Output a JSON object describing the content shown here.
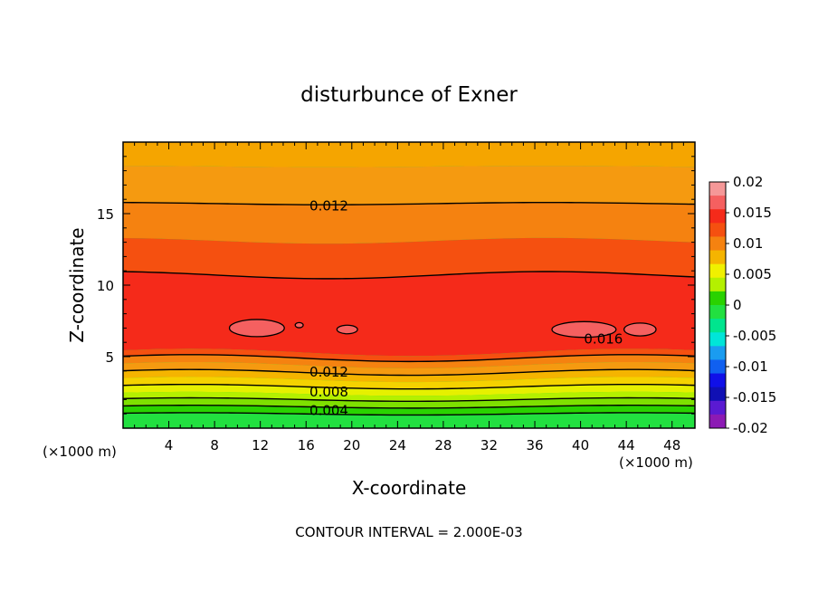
{
  "chart_data": {
    "type": "contour",
    "title": "disturbunce of Exner",
    "xlabel": "X-coordinate",
    "ylabel": "Z-coordinate",
    "x_unit_left": "(×1000 m)",
    "x_unit_right": "(×1000 m)",
    "footer": "CONTOUR INTERVAL = 2.000E-03",
    "xlim": [
      0,
      50
    ],
    "ylim": [
      0,
      20
    ],
    "x_ticks": [
      4,
      8,
      12,
      16,
      20,
      24,
      28,
      32,
      36,
      40,
      44,
      48
    ],
    "y_ticks": [
      5,
      10,
      15
    ],
    "contour_interval": 0.002,
    "contour_levels": [
      0.002,
      0.004,
      0.006,
      0.008,
      0.01,
      0.012,
      0.014,
      0.016
    ],
    "contour_labels": [
      {
        "text": "0.012",
        "x": 18,
        "z": 15.6
      },
      {
        "text": "0.012",
        "x": 18,
        "z": 4.0
      },
      {
        "text": "0.008",
        "x": 18,
        "z": 2.6
      },
      {
        "text": "0.004",
        "x": 18,
        "z": 1.3
      },
      {
        "text": "0.016",
        "x": 42,
        "z": 6.3
      }
    ],
    "colorbar": {
      "ticks": [
        "0.02",
        "0.015",
        "0.01",
        "0.005",
        "0",
        "-0.005",
        "-0.01",
        "-0.015",
        "-0.02"
      ],
      "colors": [
        "#f59898",
        "#f56060",
        "#f52a1a",
        "#f55010",
        "#f58210",
        "#f5b400",
        "#f0f000",
        "#b4f000",
        "#2ad200",
        "#22e040",
        "#00e58e",
        "#00e5d8",
        "#1a9cf0",
        "#1060f0",
        "#1010e8",
        "#1010b4",
        "#5a1ad2",
        "#8c1ab4"
      ]
    }
  }
}
